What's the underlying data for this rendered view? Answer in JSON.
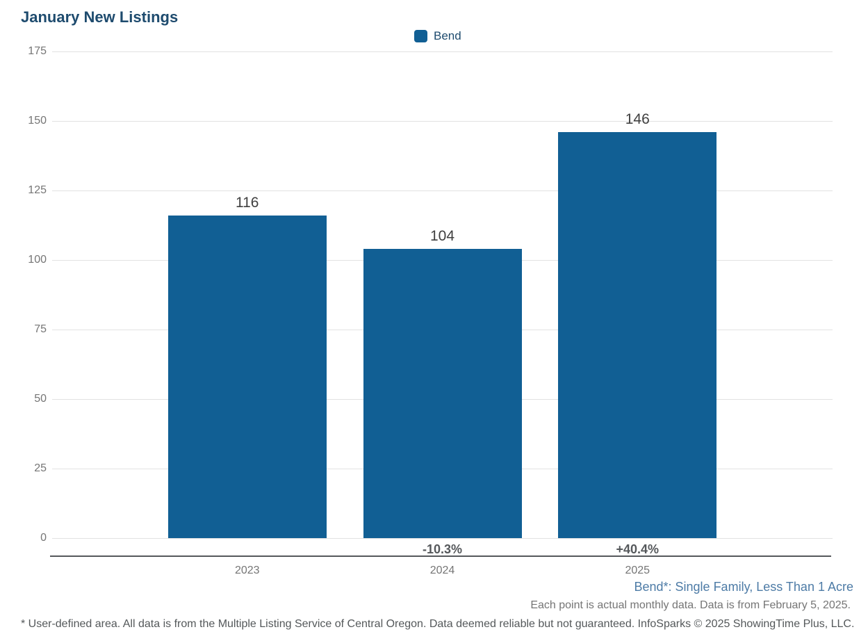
{
  "chart_data": {
    "type": "bar",
    "title": "January New Listings",
    "series_name": "Bend",
    "categories": [
      "2023",
      "2024",
      "2025"
    ],
    "values": [
      116,
      104,
      146
    ],
    "value_labels": [
      "116",
      "104",
      "146"
    ],
    "pct_change_labels": [
      "",
      "-10.3%",
      "+40.4%"
    ],
    "xlabel": "",
    "ylabel": "",
    "ylim": [
      0,
      175
    ],
    "yticks": [
      0,
      25,
      50,
      75,
      100,
      125,
      150,
      175
    ],
    "grid": true,
    "legend_position": "top-center",
    "bar_color": "#115f94"
  },
  "footnotes": {
    "area_note": "Bend*: Single Family, Less Than 1 Acre",
    "data_note": "Each point is actual monthly data. Data is from February 5, 2025.",
    "disclaimer": "* User-defined area. All data is from the Multiple Listing Service of Central Oregon. Data deemed reliable but not guaranteed. InfoSparks © 2025 ShowingTime Plus, LLC."
  },
  "colors": {
    "bar": "#115f94",
    "title": "#1e4b6e",
    "legend_text": "#1e4b6e",
    "axis_tick_labels": "#757575",
    "value_labels": "#3f3f3f",
    "pct_labels": "#55585b",
    "axis_line": "#55585b",
    "gridline": "#e2e2e2",
    "area_note": "#4d7ba6",
    "data_note": "#757575",
    "disclaimer": "#54585a"
  }
}
